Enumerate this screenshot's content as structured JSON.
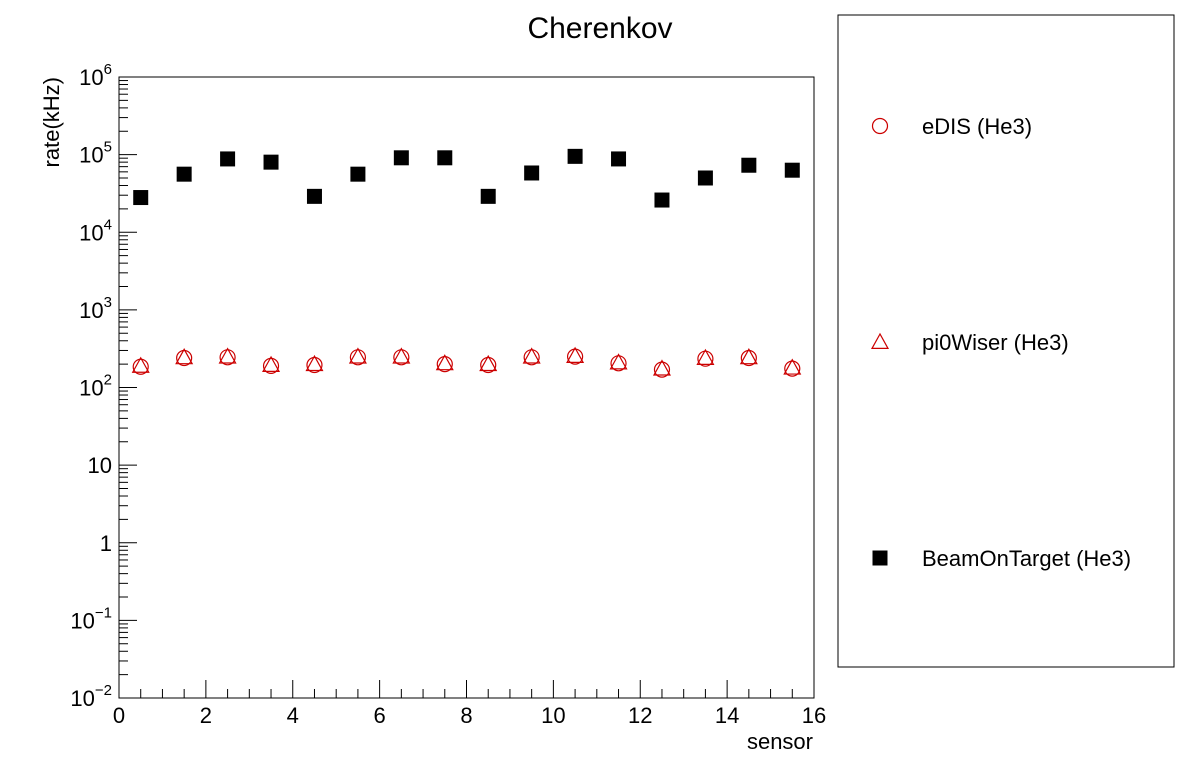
{
  "chart_data": {
    "type": "scatter",
    "title": "Cherenkov",
    "xlabel": "sensor",
    "ylabel": "rate(kHz)",
    "xlim": [
      0,
      16
    ],
    "ylim": [
      0.01,
      1000000
    ],
    "yscale": "log",
    "grid": false,
    "legend_position": "right",
    "x_ticks": [
      {
        "value": 0,
        "label": "0"
      },
      {
        "value": 2,
        "label": "2"
      },
      {
        "value": 4,
        "label": "4"
      },
      {
        "value": 6,
        "label": "6"
      },
      {
        "value": 8,
        "label": "8"
      },
      {
        "value": 10,
        "label": "10"
      },
      {
        "value": 12,
        "label": "12"
      },
      {
        "value": 14,
        "label": "14"
      },
      {
        "value": 16,
        "label": "16"
      }
    ],
    "y_ticks": [
      {
        "value": 1000000,
        "base": "10",
        "exp": "6"
      },
      {
        "value": 100000,
        "base": "10",
        "exp": "5"
      },
      {
        "value": 10000,
        "base": "10",
        "exp": "4"
      },
      {
        "value": 1000,
        "base": "10",
        "exp": "3"
      },
      {
        "value": 100,
        "base": "10",
        "exp": "2"
      },
      {
        "value": 10,
        "base": "10",
        "exp": ""
      },
      {
        "value": 1,
        "base": "1",
        "exp": ""
      },
      {
        "value": 0.1,
        "base": "10",
        "exp": "−1"
      },
      {
        "value": 0.01,
        "base": "10",
        "exp": "−2"
      }
    ],
    "x": [
      0.5,
      1.5,
      2.5,
      3.5,
      4.5,
      5.5,
      6.5,
      7.5,
      8.5,
      9.5,
      10.5,
      11.5,
      12.5,
      13.5,
      14.5,
      15.5
    ],
    "series": [
      {
        "name": "eDIS (He3)",
        "marker": "open-circle",
        "color": "#cc0000",
        "values": [
          185,
          240,
          245,
          190,
          195,
          245,
          245,
          200,
          195,
          245,
          250,
          205,
          170,
          235,
          240,
          175
        ]
      },
      {
        "name": "pi0Wiser (He3)",
        "marker": "open-triangle",
        "color": "#cc0000",
        "values": [
          190,
          245,
          250,
          195,
          200,
          250,
          250,
          205,
          200,
          250,
          255,
          210,
          175,
          240,
          245,
          180
        ]
      },
      {
        "name": "BeamOnTarget (He3)",
        "marker": "filled-square",
        "color": "#000000",
        "values": [
          28000,
          56000,
          88000,
          80000,
          29000,
          56000,
          91000,
          91000,
          29000,
          58000,
          95000,
          88000,
          26000,
          50000,
          73000,
          63000
        ]
      }
    ]
  }
}
